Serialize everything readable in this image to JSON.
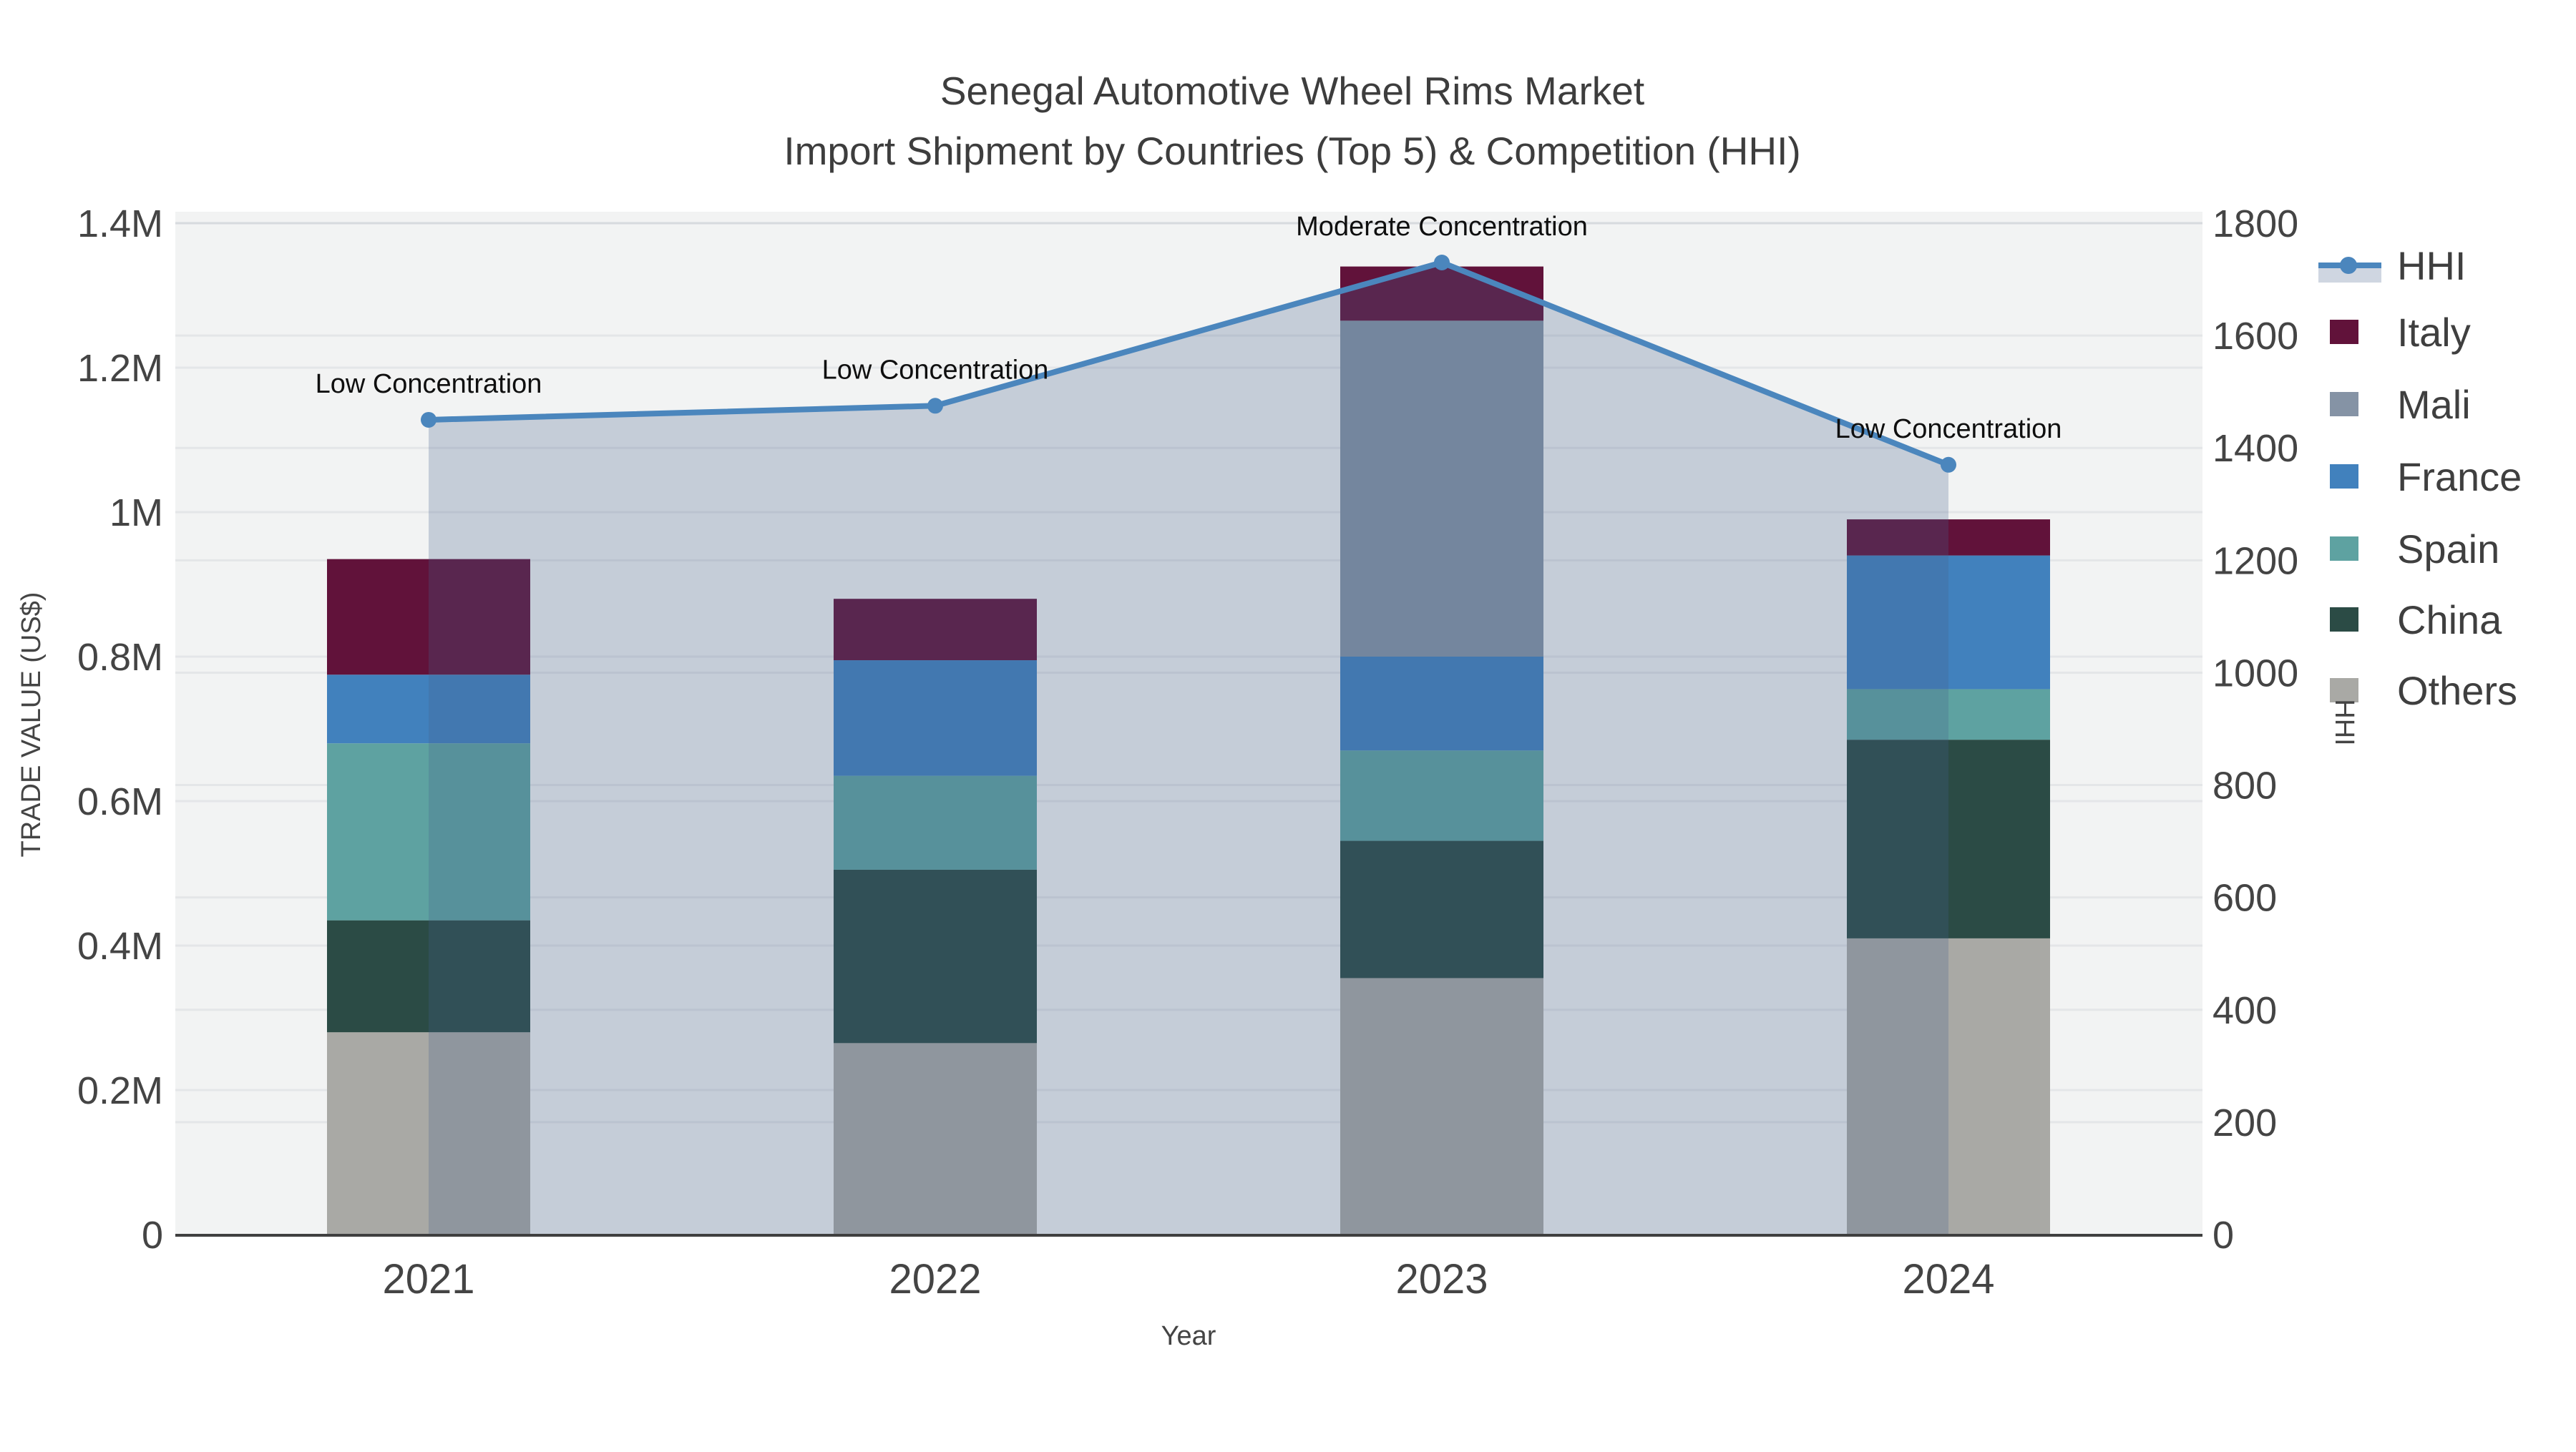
{
  "title": {
    "line1": "Senegal Automotive Wheel Rims Market",
    "line2": "Import Shipment by Countries (Top 5) & Competition (HHI)"
  },
  "axes": {
    "y_label": "TRADE VALUE (US$)",
    "x_label": "Year",
    "y2_label": "HHI"
  },
  "colors": {
    "figure_bg": "#ffffff",
    "plot_bg": "#f2f3f3",
    "grid": "rgba(105,115,135,0.10)",
    "axis_line": "#3f3f3f",
    "tick_text": "#444444",
    "title_text": "#3d3d3d",
    "annotation_text": "#0f0f0f",
    "area_fill": "rgba(70,95,140,0.26)",
    "hhi_line": "#4b86bd",
    "italy": "#61123a",
    "mali": "#8593a5",
    "france": "#4181bd",
    "spain": "#5ea2a1",
    "china": "#2b4b45",
    "others": "#a9a9a5"
  },
  "legend": {
    "items": [
      {
        "label": "HHI",
        "type": "line",
        "color": "#4b86bd"
      },
      {
        "label": "Italy",
        "type": "swatch",
        "color": "#61123a"
      },
      {
        "label": "Mali",
        "type": "swatch",
        "color": "#8593a5"
      },
      {
        "label": "France",
        "type": "swatch",
        "color": "#4181bd"
      },
      {
        "label": "Spain",
        "type": "swatch",
        "color": "#5ea2a1"
      },
      {
        "label": "China",
        "type": "swatch",
        "color": "#2b4b45"
      },
      {
        "label": "Others",
        "type": "swatch",
        "color": "#a9a9a5"
      }
    ]
  },
  "chart_data": {
    "type": "bar",
    "subtype": "stacked-bars-with-line-area-overlay",
    "title": "Senegal Automotive Wheel Rims Market — Import Shipment by Countries (Top 5) & Competition (HHI)",
    "categories": [
      "2021",
      "2022",
      "2023",
      "2024"
    ],
    "xlabel": "Year",
    "ylabel": "TRADE VALUE (US$)",
    "y2label": "HHI",
    "unit": "million US$",
    "grid": true,
    "legend_position": "right",
    "series": [
      {
        "name": "Others",
        "color_key": "others",
        "values": [
          0.28,
          0.265,
          0.355,
          0.41
        ]
      },
      {
        "name": "China",
        "color_key": "china",
        "values": [
          0.155,
          0.24,
          0.19,
          0.275
        ]
      },
      {
        "name": "Spain",
        "color_key": "spain",
        "values": [
          0.245,
          0.13,
          0.125,
          0.07
        ]
      },
      {
        "name": "France",
        "color_key": "france",
        "values": [
          0.095,
          0.16,
          0.13,
          0.185
        ]
      },
      {
        "name": "Mali",
        "color_key": "mali",
        "values": [
          0,
          0,
          0.465,
          0
        ]
      },
      {
        "name": "Italy",
        "color_key": "italy",
        "values": [
          0.16,
          0.085,
          0.075,
          0.05
        ]
      }
    ],
    "bar_totals": [
      0.935,
      0.88,
      1.34,
      0.99
    ],
    "line_series": {
      "name": "HHI",
      "axis": "right",
      "values": [
        1450,
        1475,
        1730,
        1370
      ],
      "fill": "tozeroy"
    },
    "annotations": [
      {
        "category": "2021",
        "text": "Low Concentration"
      },
      {
        "category": "2022",
        "text": "Low Concentration"
      },
      {
        "category": "2023",
        "text": "Moderate Concentration"
      },
      {
        "category": "2024",
        "text": "Low Concentration"
      }
    ],
    "y_axis": {
      "lim": [
        0,
        1.4
      ],
      "tick_step": 0.2,
      "tick_labels": [
        "0",
        "0.2M",
        "0.4M",
        "0.6M",
        "0.8M",
        "1M",
        "1.2M",
        "1.4M"
      ]
    },
    "y2_axis": {
      "lim": [
        0,
        1800
      ],
      "tick_step": 200,
      "tick_labels": [
        "0",
        "200",
        "400",
        "600",
        "800",
        "1000",
        "1200",
        "1400",
        "1600",
        "1800"
      ]
    }
  }
}
